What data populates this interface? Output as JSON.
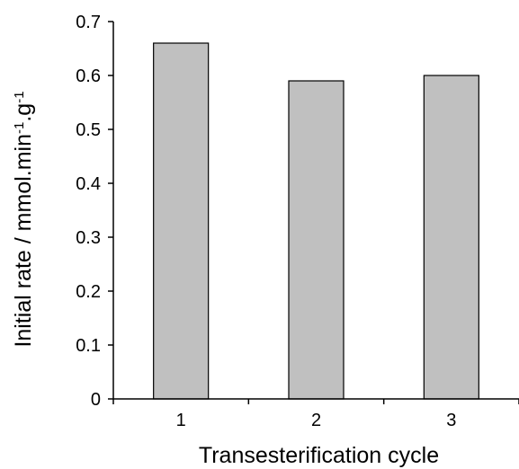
{
  "chart_data": {
    "type": "bar",
    "categories": [
      "1",
      "2",
      "3"
    ],
    "values": [
      0.66,
      0.59,
      0.6
    ],
    "xlabel": "Transesterification cycle",
    "ylabel": {
      "base": "Initial rate / mmol.min",
      "sup1": "-1",
      "mid": ".g",
      "sup2": "-1"
    },
    "ylim": [
      0,
      0.7
    ],
    "yticks": [
      "0",
      "0.1",
      "0.2",
      "0.3",
      "0.4",
      "0.5",
      "0.6",
      "0.7"
    ],
    "grid": false,
    "legend": "none",
    "bar_color": "#c0c0c0",
    "bar_edge_color": "#000000"
  }
}
